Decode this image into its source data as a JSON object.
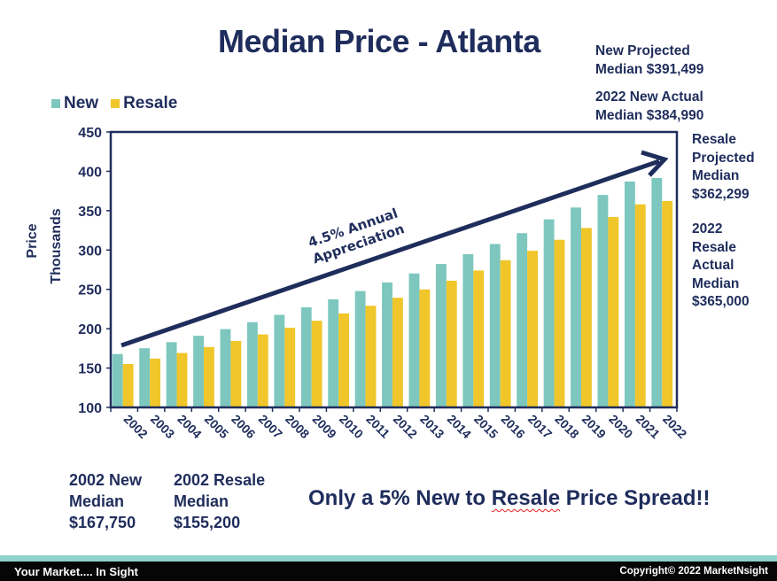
{
  "title": "Median Price - Atlanta",
  "notes": {
    "new_projected": [
      "New Projected",
      "Median $391,499"
    ],
    "new_actual": [
      "2022 New Actual",
      "Median $384,990"
    ],
    "resale_projected": [
      "Resale",
      "Projected",
      "Median",
      "$362,299"
    ],
    "resale_actual": [
      "2022",
      "Resale",
      "Actual",
      "Median",
      "$365,000"
    ],
    "new_2002": [
      "2002 New",
      "Median",
      "$167,750"
    ],
    "resale_2002": [
      "2002 Resale",
      "Median",
      "$155,200"
    ]
  },
  "spread": {
    "pre": "Only a 5% New to ",
    "underlined": "Resale",
    "post": " Price Spread!!"
  },
  "footer": {
    "left": "Your Market....  In Sight",
    "right": "Copyright© 2022 MarketNsight"
  },
  "colors": {
    "new": "#7dc7be",
    "resale": "#f0c62a",
    "navy": "#1f2d5c"
  },
  "chart_data": {
    "type": "bar",
    "title": "Median Price - Atlanta",
    "xlabel": "",
    "ylabel": "Price Thousands",
    "ylabel_lines": [
      "Price",
      "Thousands"
    ],
    "ylim": [
      100,
      450
    ],
    "yticks": [
      100,
      150,
      200,
      250,
      300,
      350,
      400,
      450
    ],
    "grid": false,
    "legend": "top-left",
    "annotation": [
      "4.5% Annual",
      "Appreciation"
    ],
    "categories": [
      "2002",
      "2003",
      "2004",
      "2005",
      "2006",
      "2007",
      "2008",
      "2009",
      "2010",
      "2011",
      "2012",
      "2013",
      "2014",
      "2015",
      "2016",
      "2017",
      "2018",
      "2019",
      "2020",
      "2021",
      "2022"
    ],
    "series": [
      {
        "name": "New",
        "values": [
          167.8,
          175.2,
          182.9,
          191.0,
          199.5,
          208.3,
          217.6,
          227.2,
          237.3,
          247.8,
          258.8,
          270.2,
          282.2,
          294.7,
          307.7,
          321.4,
          339.0,
          354.0,
          370.0,
          387.0,
          391.5
        ]
      },
      {
        "name": "Resale",
        "values": [
          155.2,
          162.0,
          169.2,
          176.7,
          184.5,
          192.7,
          201.2,
          210.1,
          219.4,
          229.1,
          239.3,
          249.9,
          261.0,
          274.0,
          287.0,
          299.0,
          313.0,
          328.0,
          342.0,
          358.0,
          362.3
        ]
      }
    ]
  }
}
